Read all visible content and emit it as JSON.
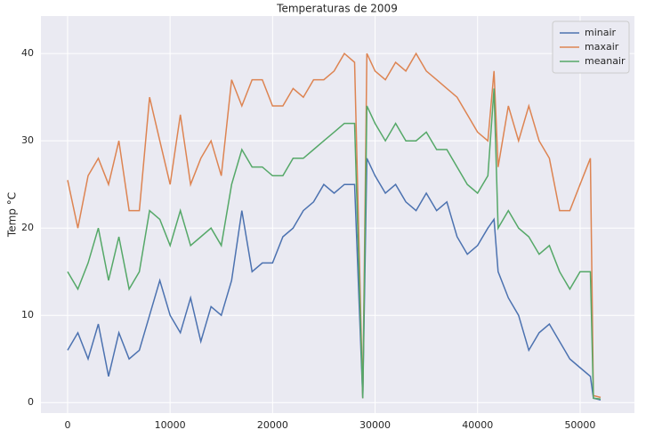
{
  "chart_data": {
    "type": "line",
    "title": "Temperaturas de 2009",
    "y_label": "Temp °C",
    "x": [
      0,
      1000,
      2000,
      3000,
      4000,
      5000,
      6000,
      7000,
      8000,
      9000,
      10000,
      11000,
      12000,
      13000,
      14000,
      15000,
      16000,
      17000,
      18000,
      19000,
      20000,
      21000,
      22000,
      23000,
      24000,
      25000,
      26000,
      27000,
      28000,
      28800,
      29200,
      30000,
      31000,
      32000,
      33000,
      34000,
      35000,
      36000,
      37000,
      38000,
      39000,
      40000,
      41000,
      41600,
      42000,
      43000,
      44000,
      45000,
      46000,
      47000,
      48000,
      49000,
      50000,
      51000,
      51300,
      52000
    ],
    "series": [
      {
        "name": "minair",
        "color": "#4c72b0",
        "values": [
          6,
          8,
          5,
          9,
          3,
          8,
          5,
          6,
          10,
          14,
          10,
          8,
          12,
          7,
          11,
          10,
          14,
          22,
          15,
          16,
          16,
          19,
          20,
          22,
          23,
          25,
          24,
          25,
          25,
          0.5,
          28,
          26,
          24,
          25,
          23,
          22,
          24,
          22,
          23,
          19,
          17,
          18,
          20,
          21,
          15,
          12,
          10,
          6,
          8,
          9,
          7,
          5,
          4,
          3,
          0.5,
          0.3
        ]
      },
      {
        "name": "maxair",
        "color": "#dd8452",
        "values": [
          25.5,
          20,
          26,
          28,
          25,
          30,
          22,
          22,
          35,
          30,
          25,
          33,
          25,
          28,
          30,
          26,
          37,
          34,
          37,
          37,
          34,
          34,
          36,
          35,
          37,
          37,
          38,
          40,
          39,
          0.5,
          40,
          38,
          37,
          39,
          38,
          40,
          38,
          37,
          36,
          35,
          33,
          31,
          30,
          38,
          27,
          34,
          30,
          34,
          30,
          28,
          22,
          22,
          25,
          28,
          0.8,
          0.6
        ]
      },
      {
        "name": "meanair",
        "color": "#55a868",
        "values": [
          15,
          13,
          16,
          20,
          14,
          19,
          13,
          15,
          22,
          21,
          18,
          22,
          18,
          19,
          20,
          18,
          25,
          29,
          27,
          27,
          26,
          26,
          28,
          28,
          29,
          30,
          31,
          32,
          32,
          0.5,
          34,
          32,
          30,
          32,
          30,
          30,
          31,
          29,
          29,
          27,
          25,
          24,
          26,
          36,
          20,
          22,
          20,
          19,
          17,
          18,
          15,
          13,
          15,
          15,
          0.5,
          0.4
        ]
      }
    ],
    "xlim": [
      -2600,
      55300
    ],
    "ylim": [
      -1.2,
      44.3
    ],
    "xticks": [
      0,
      10000,
      20000,
      30000,
      40000,
      50000
    ],
    "yticks": [
      0,
      10,
      20,
      30,
      40
    ],
    "grid": true,
    "legend": "upper right"
  }
}
